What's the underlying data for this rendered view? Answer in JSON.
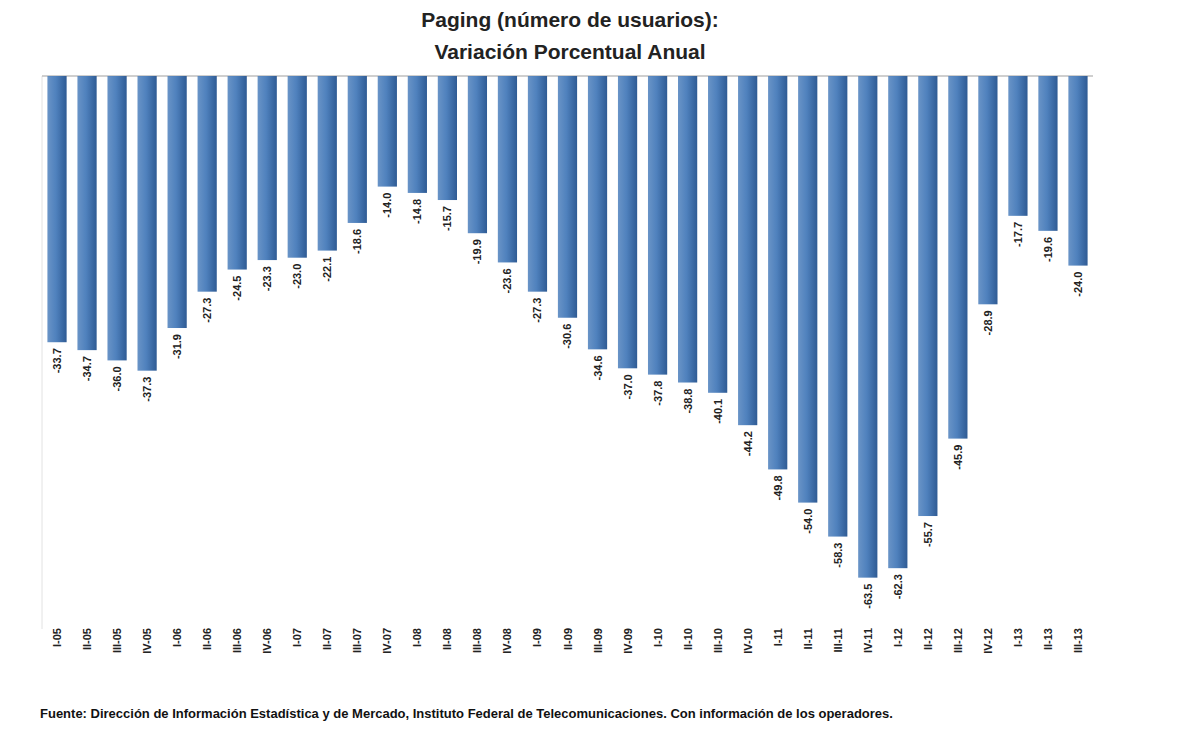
{
  "chart_data": {
    "type": "bar",
    "title": "Paging (número de usuarios):",
    "subtitle": "Variación Porcentual Anual",
    "source": "Fuente: Dirección de Información Estadística y de Mercado, Instituto Federal de Telecomunicaciones. Con información de los operadores.",
    "categories": [
      "I-05",
      "II-05",
      "III-05",
      "IV-05",
      "I-06",
      "II-06",
      "III-06",
      "IV-06",
      "I-07",
      "II-07",
      "III-07",
      "IV-07",
      "I-08",
      "II-08",
      "III-08",
      "IV-08",
      "I-09",
      "II-09",
      "III-09",
      "IV-09",
      "I-10",
      "II-10",
      "III-10",
      "IV-10",
      "I-11",
      "II-11",
      "III-11",
      "IV-11",
      "I-12",
      "II-12",
      "III-12",
      "IV-12",
      "I-13",
      "II-13",
      "III-13"
    ],
    "values": [
      -33.7,
      -34.7,
      -36.0,
      -37.3,
      -31.9,
      -27.3,
      -24.5,
      -23.3,
      -23.0,
      -22.1,
      -18.6,
      -14.0,
      -14.8,
      -15.7,
      -19.9,
      -23.6,
      -27.3,
      -30.6,
      -34.6,
      -37.0,
      -37.8,
      -38.8,
      -40.1,
      -44.2,
      -49.8,
      -54.0,
      -58.3,
      -63.5,
      -62.3,
      -55.7,
      -45.9,
      -28.9,
      -17.7,
      -19.6,
      -24.0
    ],
    "value_labels": [
      "-33.7",
      "-34.7",
      "-36.0",
      "-37.3",
      "-31.9",
      "-27.3",
      "-24.5",
      "-23.3",
      "-23.0",
      "-22.1",
      "-18.6",
      "-14.0",
      "-14.8",
      "-15.7",
      "-19.9",
      "-23.6",
      "-27.3",
      "-30.6",
      "-34.6",
      "-37.0",
      "-37.8",
      "-38.8",
      "-40.1",
      "-44.2",
      "-49.8",
      "-54.0",
      "-58.3",
      "-63.5",
      "-62.3",
      "-55.7",
      "-45.9",
      "-28.9",
      "-17.7",
      "-19.6",
      "-24.0"
    ],
    "color": "#4f81bd",
    "ylim": [
      -70,
      0
    ],
    "yticks": [
      0
    ],
    "grid": false,
    "data_labels": true,
    "tick_labels": "x"
  }
}
